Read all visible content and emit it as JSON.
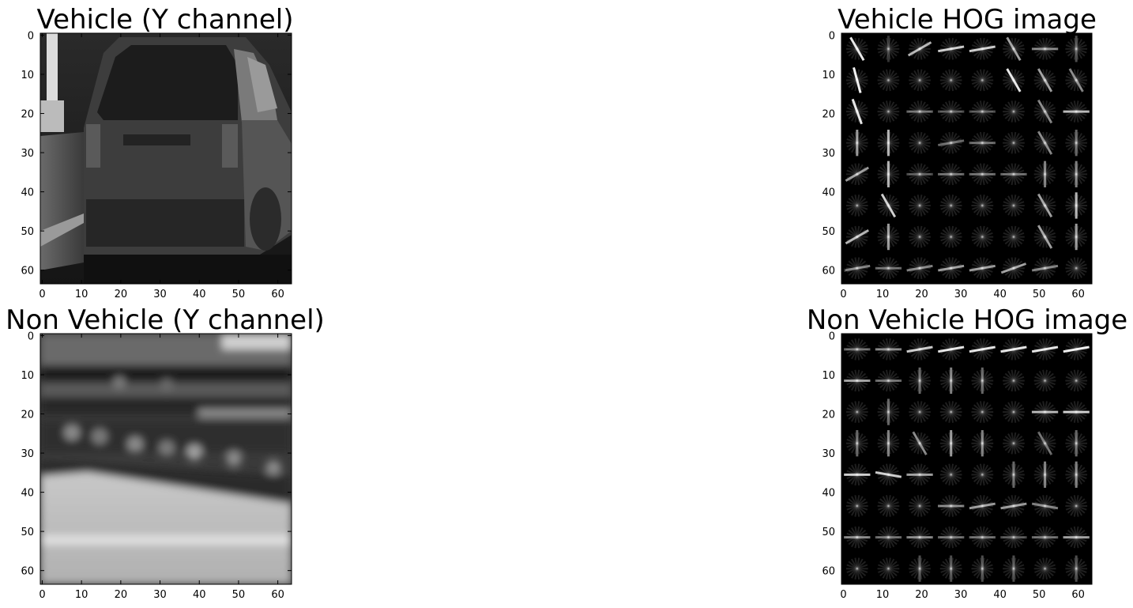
{
  "panels": [
    {
      "id": "vehicle-y",
      "title": "Vehicle (Y channel)",
      "kind": "photo-vehicle",
      "x_ticks": [
        "0",
        "10",
        "20",
        "30",
        "40",
        "50",
        "60"
      ],
      "y_ticks": [
        "0",
        "10",
        "20",
        "30",
        "40",
        "50",
        "60"
      ]
    },
    {
      "id": "vehicle-hog",
      "title": "Vehicle HOG image",
      "kind": "hog-vehicle",
      "x_ticks": [
        "0",
        "10",
        "20",
        "30",
        "40",
        "50",
        "60"
      ],
      "y_ticks": [
        "0",
        "10",
        "20",
        "30",
        "40",
        "50",
        "60"
      ]
    },
    {
      "id": "nonvehicle-y",
      "title": "Non Vehicle (Y channel)",
      "kind": "photo-nonvehicle",
      "x_ticks": [
        "0",
        "10",
        "20",
        "30",
        "40",
        "50",
        "60"
      ],
      "y_ticks": [
        "0",
        "10",
        "20",
        "30",
        "40",
        "50",
        "60"
      ]
    },
    {
      "id": "nonvehicle-hog",
      "title": "Non Vehicle HOG image",
      "kind": "hog-nonvehicle",
      "x_ticks": [
        "0",
        "10",
        "20",
        "30",
        "40",
        "50",
        "60"
      ],
      "y_ticks": [
        "0",
        "10",
        "20",
        "30",
        "40",
        "50",
        "60"
      ]
    }
  ],
  "colors": {
    "background": "#ffffff",
    "frame": "#000000",
    "hog_background": "#000000",
    "hog_stroke": "#ffffff"
  }
}
